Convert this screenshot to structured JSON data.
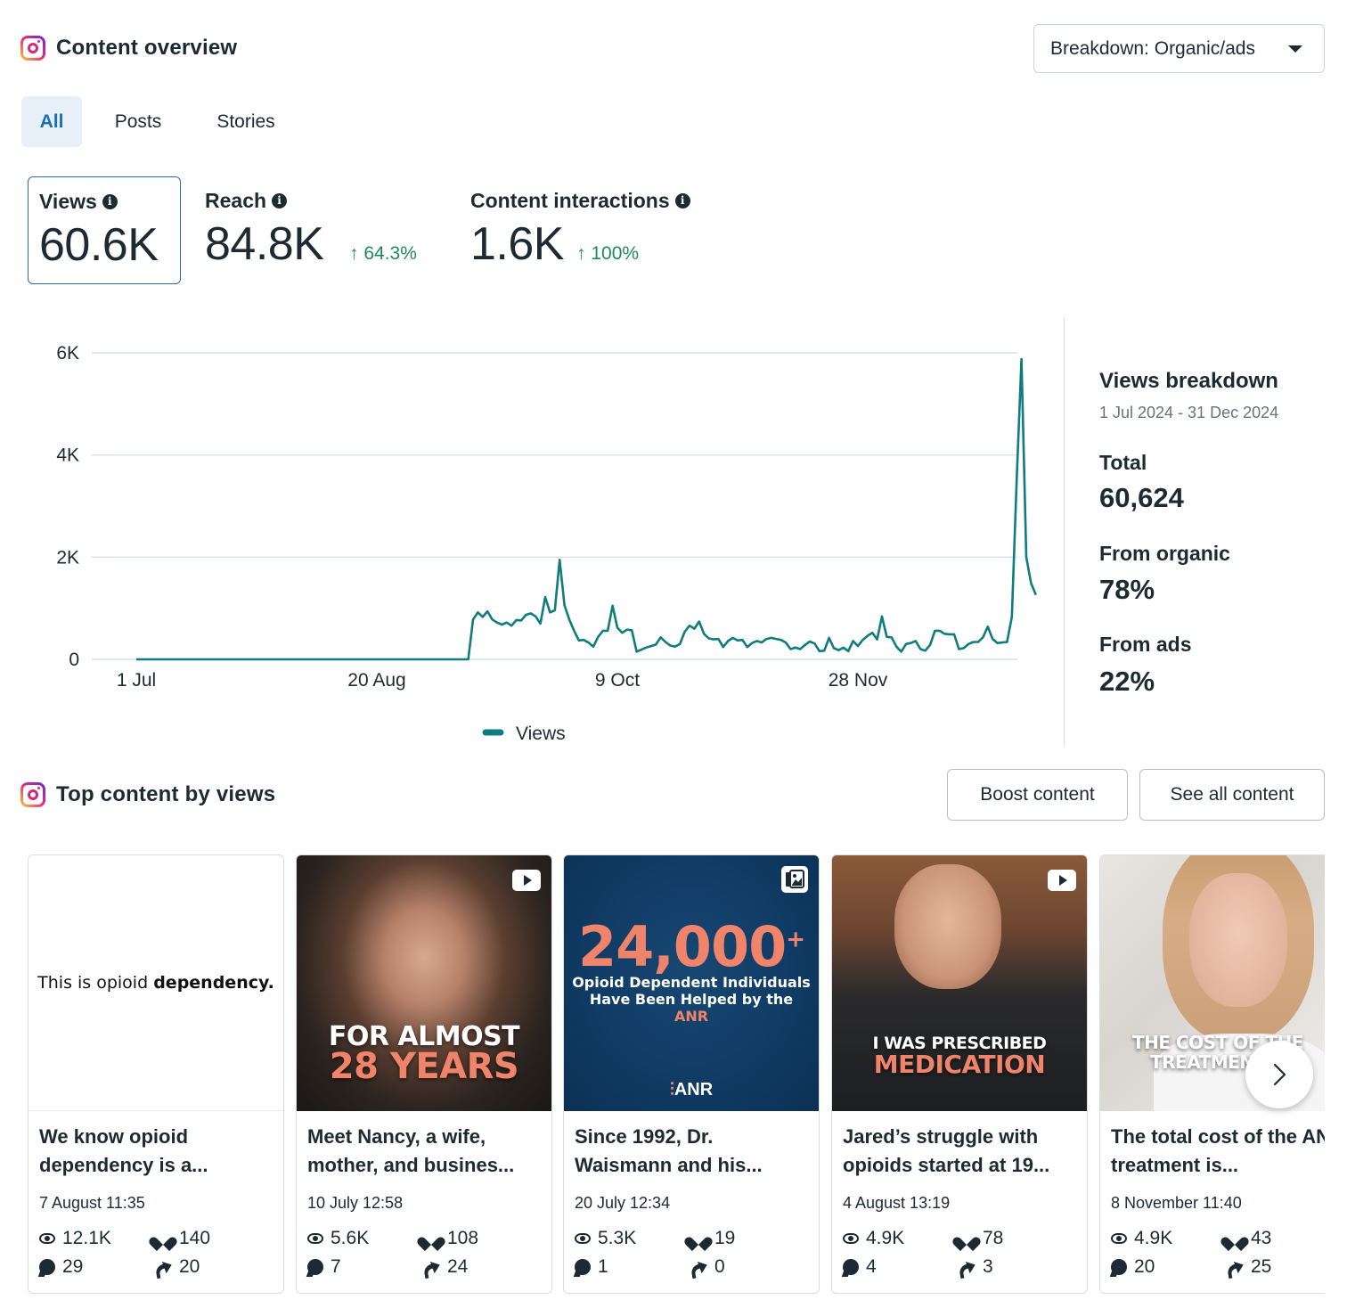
{
  "overview": {
    "title": "Content overview",
    "breakdown_dropdown": "Breakdown: Organic/ads",
    "tabs": [
      {
        "label": "All",
        "active": true
      },
      {
        "label": "Posts",
        "active": false
      },
      {
        "label": "Stories",
        "active": false
      }
    ],
    "metrics": [
      {
        "label": "Views",
        "value": "60.6K",
        "delta": "",
        "selected": true
      },
      {
        "label": "Reach",
        "value": "84.8K",
        "delta": "↑ 64.3%",
        "selected": false
      },
      {
        "label": "Content interactions",
        "value": "1.6K",
        "delta": "↑ 100%",
        "selected": false
      }
    ],
    "info_icon": "i"
  },
  "breakdown": {
    "title": "Views breakdown",
    "date_range": "1 Jul 2024 - 31 Dec 2024",
    "total_label": "Total",
    "total_value": "60,624",
    "organic_label": "From organic",
    "organic_value": "78%",
    "ads_label": "From ads",
    "ads_value": "22%"
  },
  "chart_data": {
    "type": "line",
    "title": "",
    "xlabel": "",
    "ylabel": "",
    "x_start": "1 Jul 2024",
    "x_end": "31 Dec 2024",
    "x_ticks": [
      {
        "label": "1 Jul",
        "day": 0
      },
      {
        "label": "20 Aug",
        "day": 50
      },
      {
        "label": "9 Oct",
        "day": 100
      },
      {
        "label": "28 Nov",
        "day": 150
      }
    ],
    "y_ticks": [
      {
        "label": "0",
        "value": 0
      },
      {
        "label": "2K",
        "value": 2000
      },
      {
        "label": "4K",
        "value": 4000
      },
      {
        "label": "6K",
        "value": 6000
      }
    ],
    "ylim": [
      0,
      6000
    ],
    "grid": true,
    "legend_position": "bottom-center",
    "line_color": "#0f7c80",
    "series": [
      {
        "name": "Views",
        "values": [
          0,
          0,
          0,
          0,
          0,
          0,
          0,
          0,
          0,
          0,
          0,
          0,
          0,
          0,
          0,
          0,
          0,
          0,
          0,
          0,
          0,
          0,
          0,
          0,
          0,
          0,
          0,
          0,
          0,
          0,
          0,
          0,
          0,
          0,
          0,
          0,
          0,
          0,
          0,
          0,
          0,
          0,
          0,
          0,
          0,
          0,
          0,
          0,
          0,
          0,
          0,
          0,
          0,
          0,
          0,
          0,
          0,
          0,
          0,
          0,
          0,
          0,
          0,
          0,
          0,
          0,
          0,
          0,
          0,
          0,
          780,
          920,
          830,
          940,
          780,
          720,
          680,
          720,
          660,
          770,
          760,
          870,
          900,
          840,
          700,
          1220,
          920,
          960,
          1950,
          1060,
          780,
          560,
          370,
          380,
          330,
          250,
          440,
          560,
          560,
          1050,
          620,
          520,
          580,
          570,
          150,
          190,
          230,
          260,
          290,
          430,
          340,
          270,
          250,
          300,
          540,
          660,
          600,
          740,
          500,
          410,
          390,
          400,
          240,
          360,
          420,
          370,
          380,
          240,
          320,
          360,
          330,
          400,
          420,
          400,
          380,
          330,
          200,
          230,
          200,
          280,
          350,
          310,
          160,
          170,
          420,
          220,
          180,
          230,
          160,
          360,
          260,
          380,
          460,
          520,
          390,
          840,
          440,
          430,
          250,
          150,
          300,
          320,
          360,
          200,
          170,
          280,
          560,
          560,
          500,
          490,
          490,
          200,
          220,
          300,
          340,
          340,
          430,
          640,
          400,
          320,
          330,
          340,
          830,
          3500,
          5880,
          2000,
          1490,
          1260
        ]
      }
    ]
  },
  "top_content": {
    "title": "Top content by views",
    "boost_button": "Boost content",
    "see_all_button": "See all content",
    "items": [
      {
        "title": "We know opioid dependency is a...",
        "date": "7 August 11:35",
        "views": "12.1K",
        "likes": "140",
        "comments": "29",
        "shares": "20",
        "thumb_text_regular": "This is opioid ",
        "thumb_text_bold": "dependency.",
        "media_type": "none"
      },
      {
        "title": "Meet Nancy, a wife, mother, and busines...",
        "date": "10 July 12:58",
        "views": "5.6K",
        "likes": "108",
        "comments": "7",
        "shares": "24",
        "thumb_line1": "FOR ALMOST",
        "thumb_line2": "28 YEARS",
        "media_type": "video"
      },
      {
        "title": "Since 1992, Dr. Waismann and his...",
        "date": "20 July 12:34",
        "views": "5.3K",
        "likes": "19",
        "comments": "1",
        "shares": "0",
        "thumb_big": "24,000",
        "thumb_plus": "+",
        "thumb_line1": "Opioid Dependent Individuals",
        "thumb_line2": "Have Been Helped by the",
        "thumb_line3": "ANR",
        "thumb_logo": "ANR",
        "media_type": "carousel"
      },
      {
        "title": "Jared’s struggle with opioids started at 19...",
        "date": "4 August 13:19",
        "views": "4.9K",
        "likes": "78",
        "comments": "4",
        "shares": "3",
        "thumb_line1": "I WAS PRESCRIBED",
        "thumb_line2": "MEDICATION",
        "media_type": "video"
      },
      {
        "title": "The total cost of the ANR treatment is...",
        "date": "8 November 11:40",
        "views": "4.9K",
        "likes": "43",
        "comments": "20",
        "shares": "25",
        "thumb_line1": "THE COST OF THE",
        "thumb_line2": "TREATMENT",
        "media_type": "video"
      }
    ]
  },
  "colors": {
    "accent_blue": "#1a6fb5",
    "tab_active_bg": "#e7f0f9",
    "positive_green": "#1e8a5f",
    "chart_line": "#0f7c80",
    "text_primary": "#1c2b33",
    "orange_overlay": "#f0846a",
    "anr_navy": "#0f3a63"
  }
}
